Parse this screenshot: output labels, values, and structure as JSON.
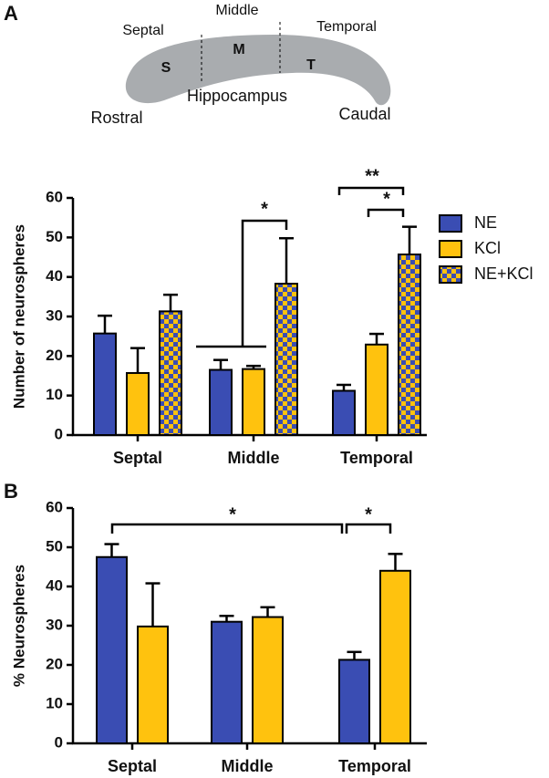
{
  "panel_labels": [
    "A",
    "B"
  ],
  "diagram": {
    "regions": [
      "Septal",
      "Middle",
      "Temporal"
    ],
    "letters": [
      "S",
      "M",
      "T"
    ],
    "structure": "Hippocampus",
    "ends": [
      "Rostral",
      "Caudal"
    ]
  },
  "chart_data": [
    {
      "type": "bar",
      "y_label": "Number of neurospheres",
      "categories": [
        "Septal",
        "Middle",
        "Temporal"
      ],
      "ylim": [
        0,
        60
      ],
      "yticks": [
        0,
        10,
        20,
        30,
        40,
        50,
        60
      ],
      "legend": "right",
      "series": [
        {
          "name": "NE",
          "color": "#3a4db3",
          "values": [
            25.7,
            16.5,
            11.2
          ],
          "errors": [
            4.5,
            2.5,
            1.5
          ]
        },
        {
          "name": "KCl",
          "color": "#ffc20e",
          "values": [
            15.7,
            16.7,
            22.9
          ],
          "errors": [
            6.3,
            0.8,
            2.7
          ]
        },
        {
          "name": "NE+KCl",
          "color": "checker",
          "values": [
            31.3,
            38.3,
            45.7
          ],
          "errors": [
            4.2,
            11.5,
            7.0
          ]
        }
      ],
      "annotations": [
        "*",
        "**",
        "*"
      ]
    },
    {
      "type": "bar",
      "y_label": "% Neurospheres",
      "categories": [
        "Septal",
        "Middle",
        "Temporal"
      ],
      "ylim": [
        0,
        60
      ],
      "yticks": [
        0,
        10,
        20,
        30,
        40,
        50,
        60
      ],
      "series": [
        {
          "color": "#3a4db3",
          "values": [
            47.5,
            31.0,
            21.3
          ],
          "errors": [
            3.3,
            1.5,
            2.0
          ]
        },
        {
          "color": "#ffc20e",
          "values": [
            29.8,
            32.2,
            44.0
          ],
          "errors": [
            11.0,
            2.5,
            4.3
          ]
        }
      ],
      "annotations": [
        "*",
        "*"
      ]
    }
  ]
}
